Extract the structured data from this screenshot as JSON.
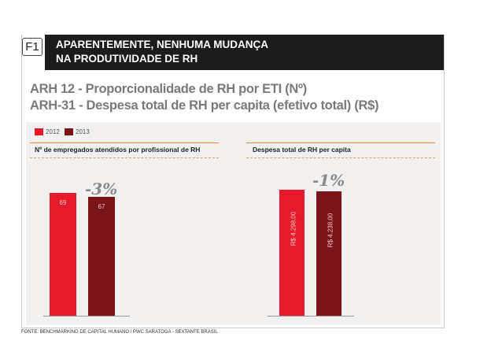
{
  "figure_label": "F1",
  "header": {
    "line1": "APARENTEMENTE, NENHUMA MUDANÇA",
    "line2": "NA PRODUTIVIDADE DE RH"
  },
  "subtitles": [
    "ARH 12 - Proporcionalidade de RH por ETI (Nº)",
    "ARH-31 - Despesa total de RH per capita (efetivo total) (R$)"
  ],
  "colors": {
    "2012": "#e8192c",
    "2013": "#7a1418"
  },
  "source": "FONTE: BENCHMARKING DE CAPITAL HUMANO / PWC SARATOGA - SEXTANTE BRASIL",
  "chart_data": [
    {
      "type": "bar",
      "title": "Nº de empregados atendidos por profissional de RH",
      "legend": [
        "2012",
        "2013"
      ],
      "categories": [
        "2012",
        "2013"
      ],
      "values": [
        69,
        67
      ],
      "labels": [
        "69",
        "67"
      ],
      "annotation": "-3%"
    },
    {
      "type": "bar",
      "title": "Despesa total de RH per capita",
      "legend": [
        "2012",
        "2013"
      ],
      "categories": [
        "2012",
        "2013"
      ],
      "values": [
        4298,
        4238
      ],
      "labels": [
        "R$ 4.298,00",
        "R$ 4.238,00"
      ],
      "annotation": "-1%"
    }
  ]
}
